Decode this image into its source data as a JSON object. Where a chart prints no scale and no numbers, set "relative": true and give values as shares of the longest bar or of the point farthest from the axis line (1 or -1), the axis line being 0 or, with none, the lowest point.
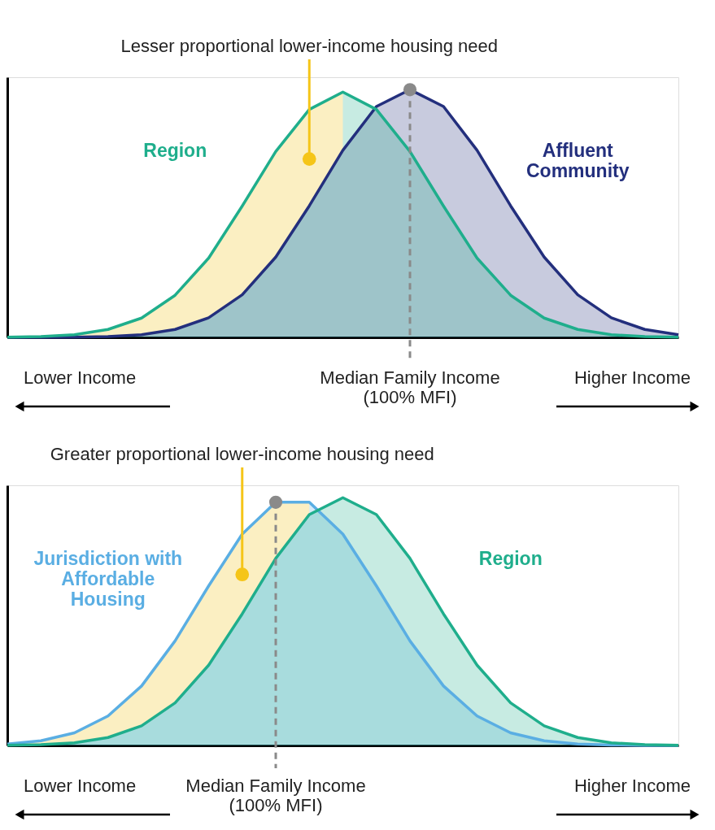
{
  "chart_data": [
    {
      "type": "area",
      "relative": true,
      "categories": [
        null,
        null,
        null,
        null,
        null,
        null,
        null,
        null,
        null,
        null,
        null,
        null,
        null,
        null,
        null,
        null,
        null,
        null,
        null,
        null,
        null
      ],
      "series": [
        {
          "name": "Affluent Community",
          "color": "#232f7d",
          "values": [
            0,
            0,
            0.001,
            0.003,
            0.011,
            0.032,
            0.079,
            0.172,
            0.324,
            0.531,
            0.755,
            0.932,
            1,
            0.932,
            0.755,
            0.531,
            0.324,
            0.172,
            0.079,
            0.032,
            0.011
          ]
        },
        {
          "name": "Region",
          "color": "#1fae8c",
          "values": [
            0.001,
            0.003,
            0.011,
            0.032,
            0.078,
            0.17,
            0.32,
            0.53,
            0.75,
            0.92,
            0.99,
            0.92,
            0.75,
            0.53,
            0.32,
            0.17,
            0.078,
            0.032,
            0.011,
            0.003,
            0.001
          ],
          "lower": [
            0,
            0,
            0.001,
            0.003,
            0.011,
            0.032,
            0.079,
            0.172,
            0.324,
            0.531,
            0.755,
            null,
            null,
            null,
            null,
            null,
            null,
            null,
            null,
            null,
            null
          ],
          "upper": [
            0.001,
            0.003,
            0.011,
            0.032,
            0.078,
            0.17,
            0.32,
            0.53,
            0.75,
            0.92,
            0.99,
            null,
            null,
            null,
            null,
            null,
            null,
            null,
            null,
            null,
            null
          ]
        }
      ],
      "annotations": [
        {
          "text": "Lesser proportional lower-income housing need",
          "y": 0.72
        },
        "Lower Income",
        "Median Family Income\n(100% MFI)",
        "Higher Income"
      ]
    },
    {
      "type": "area",
      "relative": true,
      "categories": [
        null,
        null,
        null,
        null,
        null,
        null,
        null,
        null,
        null,
        null,
        null,
        null,
        null,
        null,
        null,
        null,
        null,
        null,
        null,
        null,
        null
      ],
      "series": [
        {
          "name": "Jurisdiction with Affordable Housing",
          "color": "#5aaee3",
          "values": [
            0.006,
            0.019,
            0.051,
            0.119,
            0.24,
            0.422,
            0.644,
            0.853,
            0.982,
            0.982,
            0.853,
            0.644,
            0.422,
            0.24,
            0.119,
            0.051,
            0.019,
            0.006,
            0.002,
            0,
            0
          ],
          "lower": [
            0.001,
            0.003,
            0.011,
            0.032,
            0.079,
            0.172,
            0.324,
            0.531,
            0.755,
            0.932,
            null,
            null,
            null,
            null,
            null,
            null,
            null,
            null,
            null,
            null,
            null
          ],
          "upper": [
            0.006,
            0.019,
            0.051,
            0.119,
            0.24,
            0.422,
            0.644,
            0.853,
            0.982,
            0.982,
            null,
            null,
            null,
            null,
            null,
            null,
            null,
            null,
            null,
            null,
            null
          ]
        },
        {
          "name": "Region",
          "color": "#1fae8c",
          "values": [
            0.001,
            0.003,
            0.011,
            0.032,
            0.079,
            0.172,
            0.324,
            0.531,
            0.755,
            0.932,
            1,
            0.932,
            0.755,
            0.531,
            0.324,
            0.172,
            0.079,
            0.032,
            0.011,
            0.003,
            0.001
          ]
        }
      ],
      "annotations": [
        {
          "text": "Greater proportional lower-income housing need",
          "y": 0.69
        },
        "Lower Income",
        "Median Family Income\n(100% MFI)",
        "Higher Income"
      ]
    }
  ]
}
